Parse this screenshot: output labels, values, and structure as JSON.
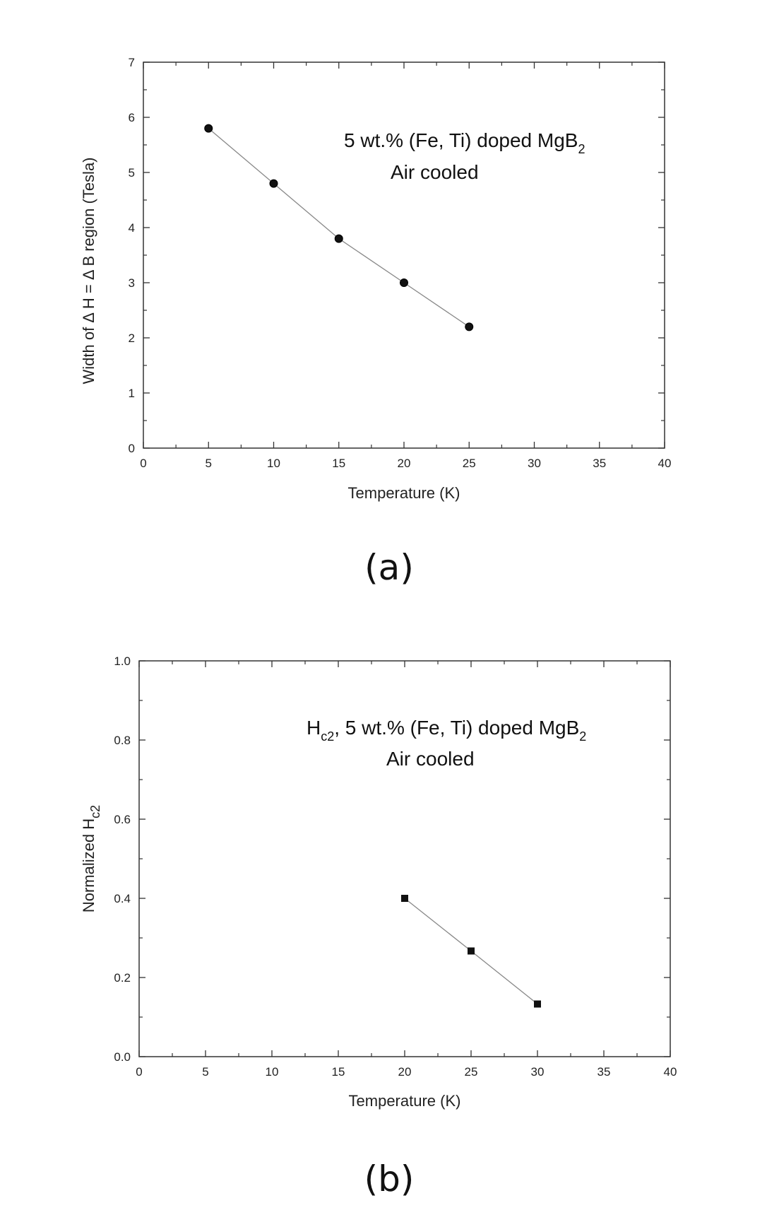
{
  "chart_data": [
    {
      "type": "scatter",
      "panel_label": "(a)",
      "xlabel": "Temperature (K)",
      "ylabel": "Width of Δ  H = Δ  B region (Tesla)",
      "xlim": [
        0,
        40
      ],
      "ylim": [
        0,
        7
      ],
      "x_ticks": [
        0,
        5,
        10,
        15,
        20,
        25,
        30,
        35,
        40
      ],
      "y_ticks": [
        0,
        1,
        2,
        3,
        4,
        5,
        6,
        7
      ],
      "x_tick_labels": [
        "0",
        "5",
        "10",
        "15",
        "20",
        "25",
        "30",
        "35",
        "40"
      ],
      "y_tick_labels": [
        "0",
        "1",
        "2",
        "3",
        "4",
        "5",
        "6",
        "7"
      ],
      "annotation": {
        "line1_main": "5 wt.% (Fe, Ti) doped MgB",
        "line1_sub": "2",
        "line2": "Air cooled"
      },
      "marker": "circle",
      "connected": true,
      "grid": false,
      "series": [
        {
          "x": [
            5,
            10,
            15,
            20,
            25
          ],
          "y": [
            5.8,
            4.8,
            3.8,
            3.0,
            2.2
          ]
        }
      ]
    },
    {
      "type": "scatter",
      "panel_label": "(b)",
      "xlabel": "Temperature (K)",
      "ylabel_main": "Normalized  H",
      "ylabel_sub": "c2",
      "xlim": [
        0,
        40
      ],
      "ylim": [
        0,
        1.0
      ],
      "x_ticks": [
        0,
        5,
        10,
        15,
        20,
        25,
        30,
        35,
        40
      ],
      "y_ticks": [
        0,
        0.2,
        0.4,
        0.6,
        0.8,
        1.0
      ],
      "x_tick_labels": [
        "0",
        "5",
        "10",
        "15",
        "20",
        "25",
        "30",
        "35",
        "40"
      ],
      "y_tick_labels": [
        "0.0",
        "0.2",
        "0.4",
        "0.6",
        "0.8",
        "1.0"
      ],
      "annotation": {
        "line1_pre": "H",
        "line1_pre_sub": "c2",
        "line1_main": ", 5 wt.% (Fe, Ti) doped MgB",
        "line1_sub": "2",
        "line2": "Air cooled"
      },
      "marker": "square",
      "connected": true,
      "grid": false,
      "series": [
        {
          "x": [
            20,
            25,
            30
          ],
          "y": [
            0.4,
            0.267,
            0.133
          ]
        }
      ]
    }
  ]
}
